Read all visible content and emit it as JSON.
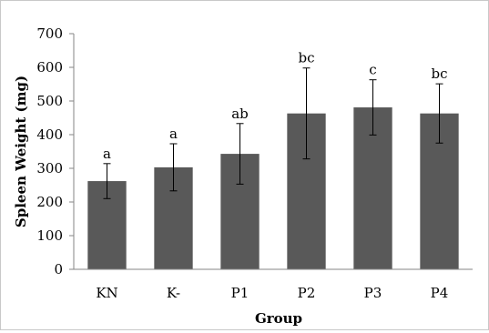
{
  "chart_data": {
    "type": "bar",
    "xlabel": "Group",
    "ylabel": "Spleen Weight (mg)",
    "categories": [
      "KN",
      "K-",
      "P1",
      "P2",
      "P3",
      "P4"
    ],
    "values": [
      262,
      303,
      343,
      463,
      481,
      463
    ],
    "error": [
      52,
      70,
      90,
      135,
      82,
      88
    ],
    "significance": [
      "a",
      "a",
      "ab",
      "bc",
      "c",
      "bc"
    ],
    "ylim": [
      0,
      700
    ],
    "yticks": [
      0,
      100,
      200,
      300,
      400,
      500,
      600,
      700
    ],
    "grid": false,
    "legend": "none",
    "bar_color": "#595959",
    "error_bar_color": "#000000"
  }
}
